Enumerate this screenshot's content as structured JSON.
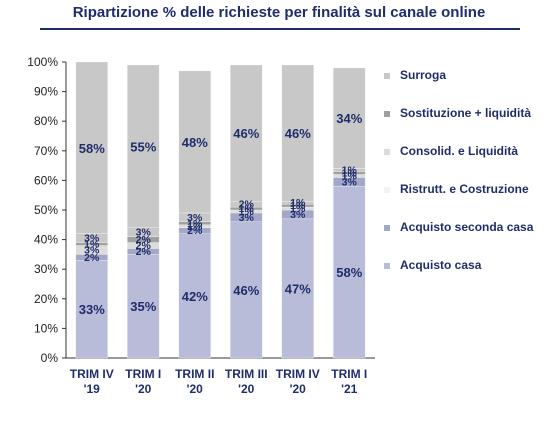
{
  "title": "Ripartizione % delle richieste per finalità sul canale online",
  "colors": {
    "title": "#1f2d6b",
    "text": "#1f2d6b",
    "axis": "#333333"
  },
  "chart_data": {
    "type": "bar",
    "stacked": true,
    "categories": [
      [
        "TRIM IV",
        "'19"
      ],
      [
        "TRIM I",
        "'20"
      ],
      [
        "TRIM II",
        "'20"
      ],
      [
        "TRIM III",
        "'20"
      ],
      [
        "TRIM IV",
        "'20"
      ],
      [
        "TRIM I",
        "'21"
      ]
    ],
    "ylim": [
      0,
      100
    ],
    "yticks": [
      "0%",
      "10%",
      "20%",
      "30%",
      "40%",
      "50%",
      "60%",
      "70%",
      "80%",
      "90%",
      "100%"
    ],
    "legend_position": "right",
    "series": [
      {
        "name": "Acquisto casa",
        "color": "#b8bcd9",
        "values": [
          33,
          35,
          42,
          46,
          47,
          58
        ],
        "labels": [
          "33%",
          "35%",
          "42%",
          "46%",
          "47%",
          "58%"
        ]
      },
      {
        "name": "Acquisto seconda casa",
        "color": "#a3a8c8",
        "values": [
          2,
          2,
          2,
          3,
          3,
          3
        ],
        "labels": [
          "2%",
          "2%",
          "2%",
          "3%",
          "3%",
          "3%"
        ]
      },
      {
        "name": "Ristrutt. e Costruzione",
        "color": "#f2f2f2",
        "values": [
          0,
          0,
          0,
          0,
          0,
          0
        ],
        "labels": [
          "",
          "",
          "",
          "",
          "",
          ""
        ]
      },
      {
        "name": "Consolid. e Liquidità",
        "color": "#dcdcdc",
        "values": [
          3,
          2,
          1,
          1,
          1,
          1
        ],
        "labels": [
          "3%",
          "2%",
          "1%",
          "1%",
          "1%",
          "1%"
        ]
      },
      {
        "name": "Sostituzione + liquidità",
        "color": "#a0a0a0",
        "values": [
          1,
          2,
          1,
          1,
          1,
          1
        ],
        "labels": [
          "1%",
          "2%",
          "1%",
          "1%",
          "1%",
          "1%"
        ]
      },
      {
        "name": "Surroga",
        "color": "#c8c8c8",
        "values": [
          3,
          3,
          3,
          2,
          1,
          1
        ],
        "labels": [
          "3%",
          "3%",
          "3%",
          "2%",
          "1%",
          "1%"
        ]
      },
      {
        "name": "",
        "color": "#c8c8c8",
        "values": [
          58,
          55,
          48,
          46,
          46,
          34
        ],
        "labels": [
          "58%",
          "55%",
          "48%",
          "46%",
          "46%",
          "34%"
        ]
      }
    ],
    "legend_order": [
      "Surroga",
      "Sostituzione + liquidità",
      "Consolid. e Liquidità",
      "Ristrutt. e Costruzione",
      "Acquisto seconda casa",
      "Acquisto casa"
    ]
  }
}
